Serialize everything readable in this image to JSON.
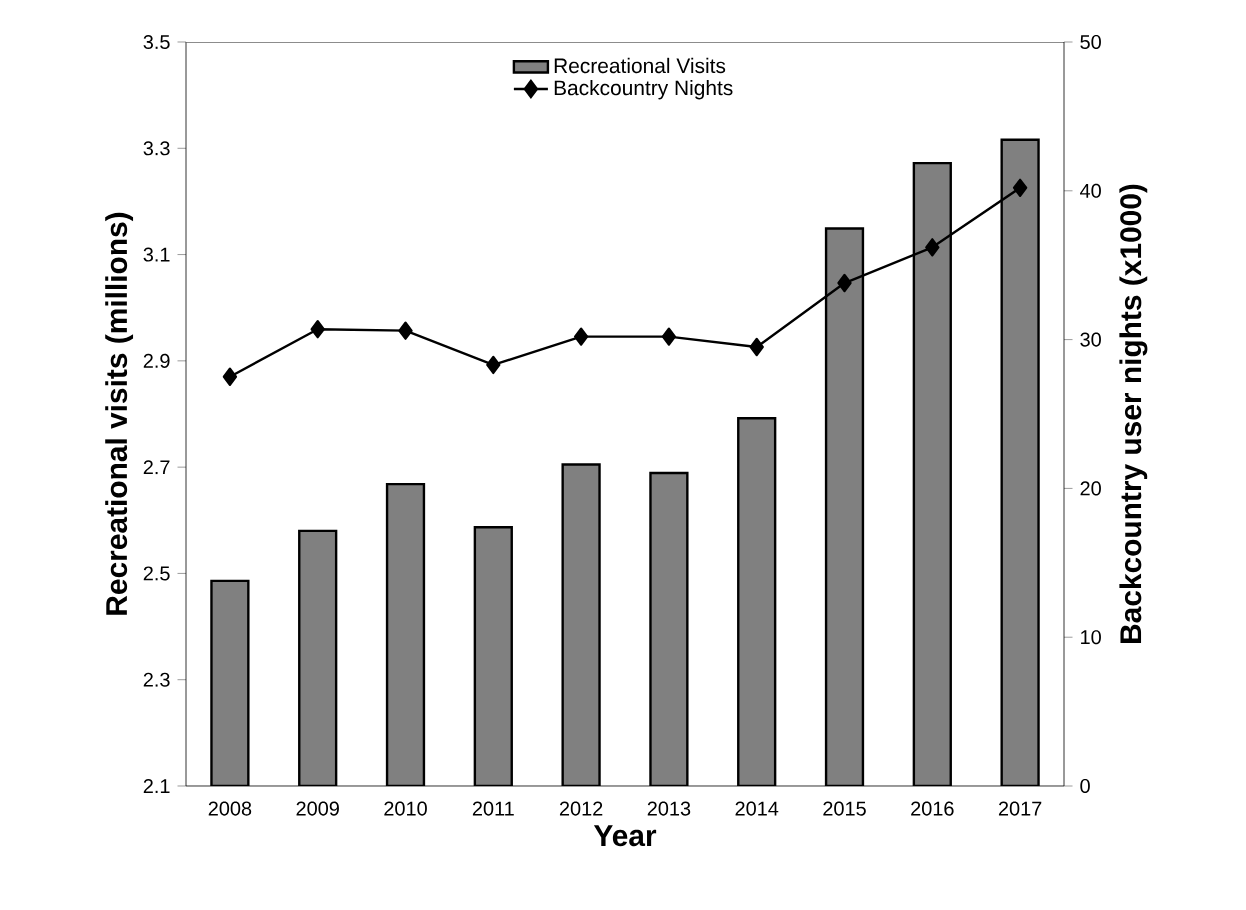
{
  "chart_data": {
    "type": "bar",
    "categories": [
      "2008",
      "2009",
      "2010",
      "2011",
      "2012",
      "2013",
      "2014",
      "2015",
      "2016",
      "2017"
    ],
    "series": [
      {
        "name": "Recreational Visits",
        "color": "#808080",
        "values": [
          2.486,
          2.58,
          2.668,
          2.587,
          2.705,
          2.689,
          2.792,
          3.149,
          3.272,
          3.316
        ]
      },
      {
        "name": "Backcountry Nights",
        "type": "line",
        "axis": "y2",
        "color": "#000000",
        "marker": "diamond",
        "values": [
          27.5,
          30.7,
          30.6,
          28.3,
          30.2,
          30.2,
          29.5,
          33.8,
          36.2,
          40.2
        ]
      }
    ],
    "xlabel": "Year",
    "ylabel": "Recreational visits (millions)",
    "y2label": "Backcountry user nights (x1000)",
    "ylim": [
      2.1,
      3.5
    ],
    "yticks": [
      2.1,
      2.3,
      2.5,
      2.7,
      2.9,
      3.1,
      3.3,
      3.5
    ],
    "y2lim": [
      0,
      50
    ],
    "y2ticks": [
      0,
      10,
      20,
      30,
      40,
      50
    ],
    "legend": "top"
  }
}
